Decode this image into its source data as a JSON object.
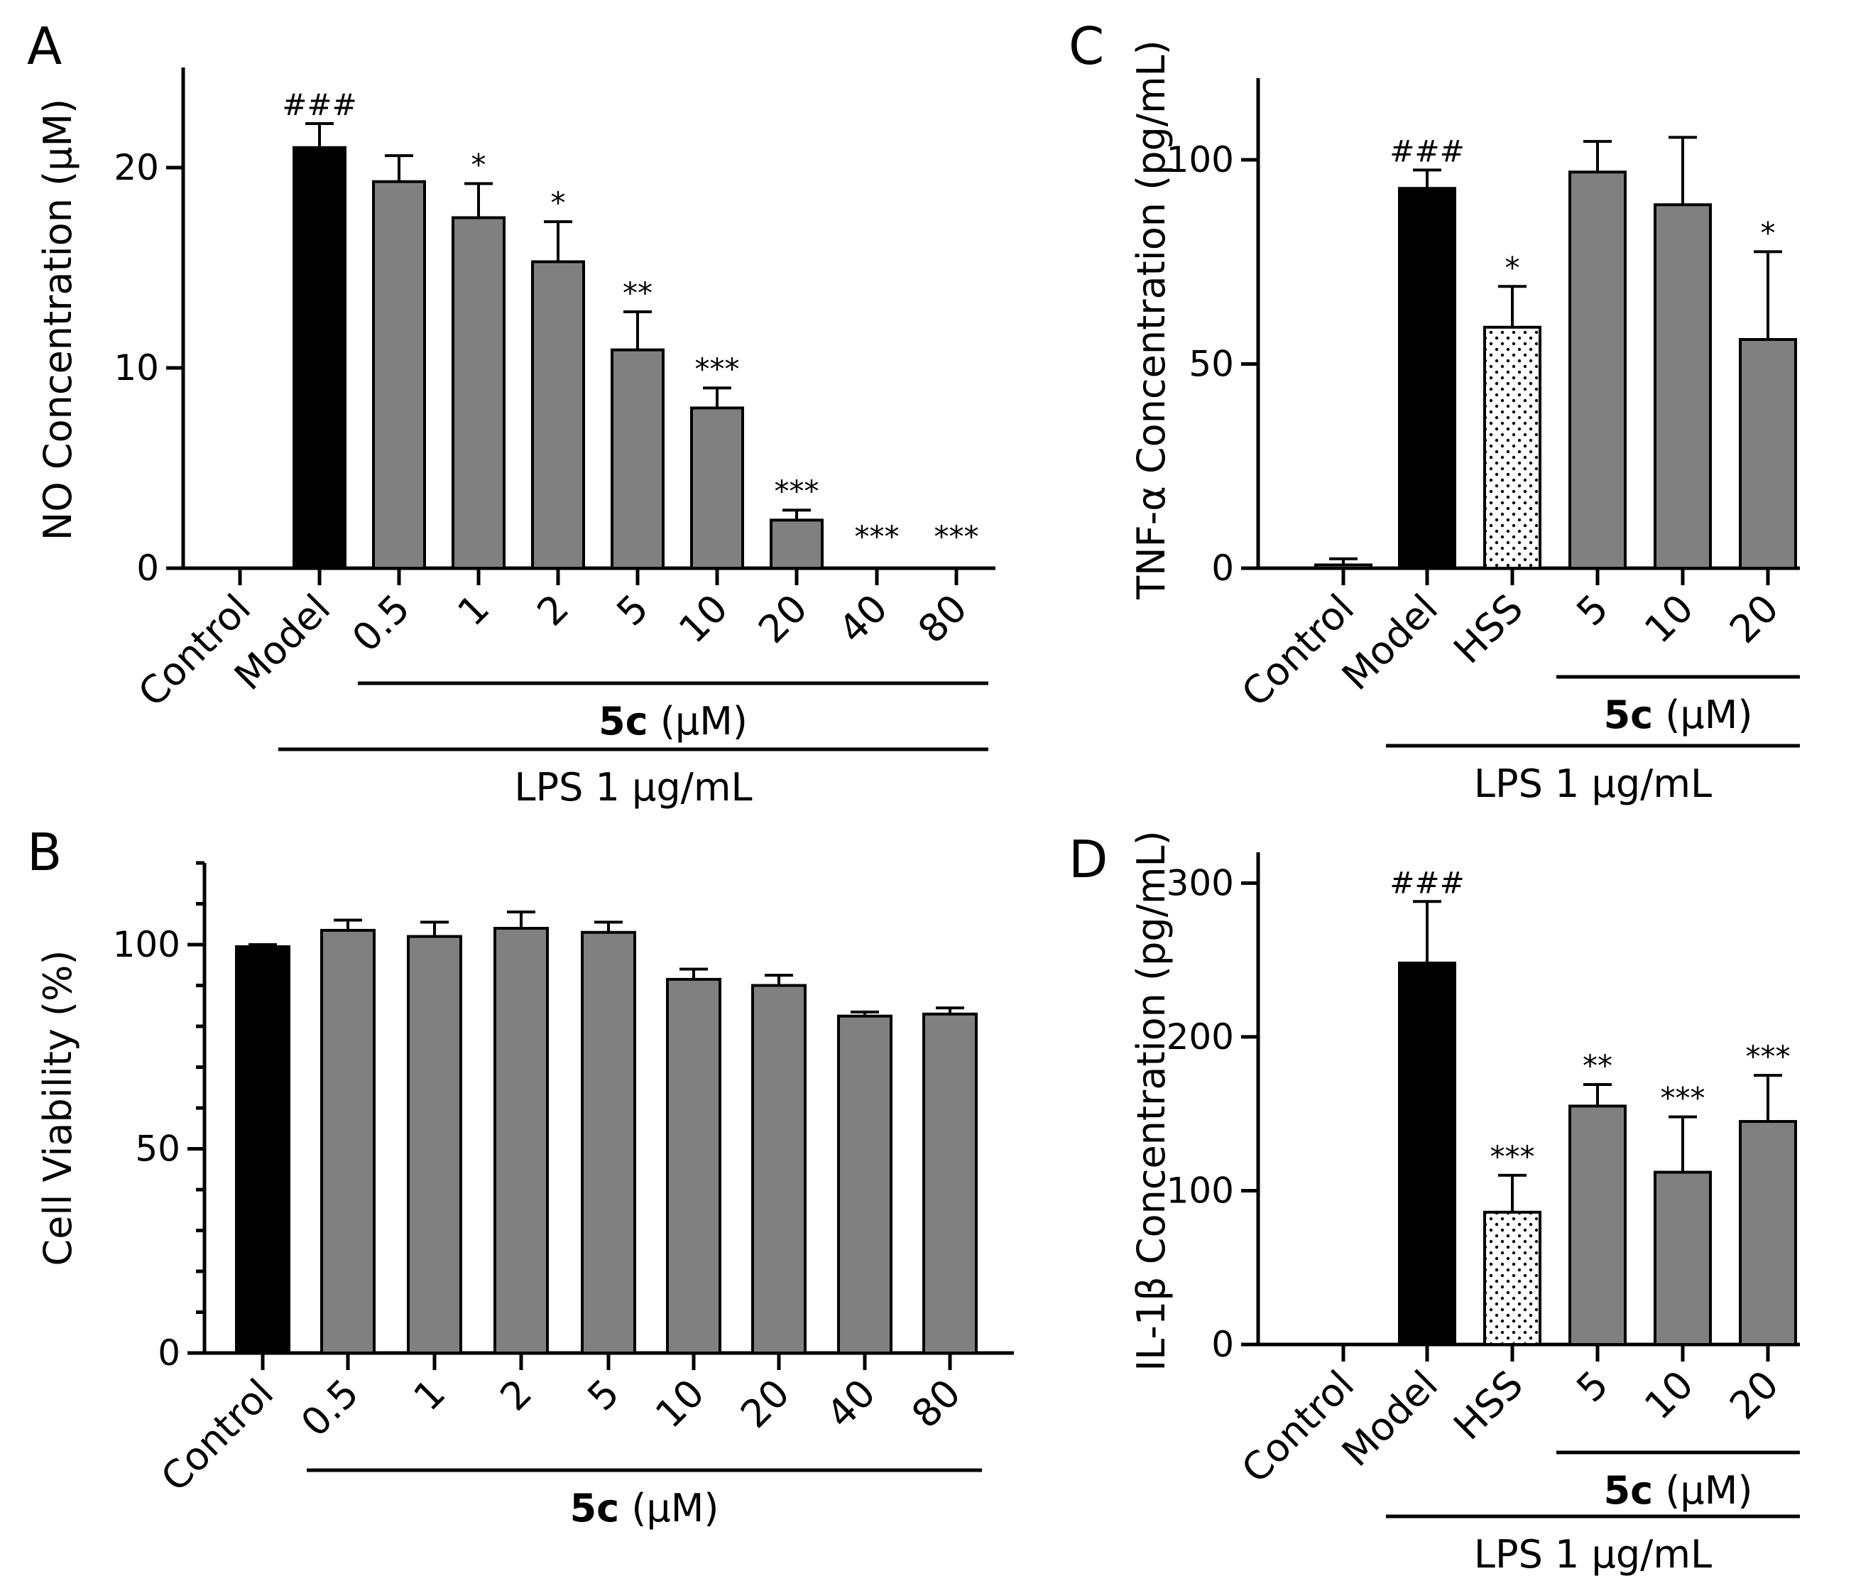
{
  "colors": {
    "model": "#000000",
    "treatment": "#808080",
    "hss_fill": "#ffffff",
    "axis": "#000000"
  },
  "chart_data": [
    {
      "panel": "A",
      "type": "bar",
      "ylabel": "NO  Concentration (μM)",
      "ylim": [
        0,
        25
      ],
      "yticks": [
        0,
        10,
        20
      ],
      "categories": [
        "Control",
        "Model",
        "0.5",
        "1",
        "2",
        "5",
        "10",
        "20",
        "40",
        "80"
      ],
      "values": [
        0,
        21.0,
        19.3,
        17.5,
        15.3,
        10.9,
        8.0,
        2.4,
        0,
        0
      ],
      "errors": [
        0,
        1.2,
        1.3,
        1.7,
        2.0,
        1.9,
        1.0,
        0.5,
        0,
        0
      ],
      "fills": [
        "treatment",
        "model",
        "treatment",
        "treatment",
        "treatment",
        "treatment",
        "treatment",
        "treatment",
        "treatment",
        "treatment"
      ],
      "significance": [
        "",
        "###",
        "",
        "*",
        "*",
        "**",
        "***",
        "***",
        "***",
        "***"
      ],
      "groups": [
        {
          "label_bold": "5c",
          "label_rest": " (μM)",
          "from": 2,
          "to": 9
        },
        {
          "label_bold": "",
          "label_rest": "LPS 1 μg/mL",
          "from": 1,
          "to": 9
        }
      ]
    },
    {
      "panel": "B",
      "type": "bar",
      "ylabel": "Cell Viability (%)",
      "ylim": [
        0,
        120
      ],
      "yticks": [
        0,
        50,
        100
      ],
      "categories": [
        "Control",
        "0.5",
        "1",
        "2",
        "5",
        "10",
        "20",
        "40",
        "80"
      ],
      "values": [
        99.5,
        103.5,
        102,
        104,
        103,
        91.5,
        90,
        82.5,
        83
      ],
      "errors": [
        0.5,
        2.5,
        3.5,
        4,
        2.5,
        2.5,
        2.5,
        1,
        1.5
      ],
      "fills": [
        "model",
        "treatment",
        "treatment",
        "treatment",
        "treatment",
        "treatment",
        "treatment",
        "treatment",
        "treatment"
      ],
      "significance": [
        "",
        "",
        "",
        "",
        "",
        "",
        "",
        "",
        ""
      ],
      "groups": [
        {
          "label_bold": "5c",
          "label_rest": " (μM)",
          "from": 1,
          "to": 8
        }
      ]
    },
    {
      "panel": "C",
      "type": "bar",
      "ylabel": "TNF-α Concentration (pg/mL)",
      "ylim": [
        0,
        120
      ],
      "yticks": [
        0,
        50,
        100
      ],
      "categories": [
        "Control",
        "Model",
        "HSS",
        "5",
        "10",
        "20"
      ],
      "values": [
        0.8,
        93,
        59,
        97,
        89,
        56
      ],
      "errors": [
        1.5,
        4.5,
        10,
        7.5,
        16.5,
        21.5
      ],
      "fills": [
        "treatment",
        "model",
        "hss",
        "treatment",
        "treatment",
        "treatment"
      ],
      "significance": [
        "",
        "###",
        "*",
        "",
        "",
        "*"
      ],
      "groups": [
        {
          "label_bold": "5c",
          "label_rest": " (μM)",
          "from": 3,
          "to": 5
        },
        {
          "label_bold": "",
          "label_rest": "LPS  1 μg/mL",
          "from": 1,
          "to": 5
        }
      ]
    },
    {
      "panel": "D",
      "type": "bar",
      "ylabel": "IL-1β Concentration (pg/mL)",
      "ylim": [
        0,
        320
      ],
      "yticks": [
        0,
        100,
        200,
        300
      ],
      "categories": [
        "Control",
        "Model",
        "HSS",
        "5",
        "10",
        "20"
      ],
      "values": [
        0,
        248,
        86,
        155,
        112,
        145
      ],
      "errors": [
        0,
        40,
        24,
        14,
        36,
        30
      ],
      "fills": [
        "treatment",
        "model",
        "hss",
        "treatment",
        "treatment",
        "treatment"
      ],
      "significance": [
        "",
        "###",
        "***",
        "**",
        "***",
        "***"
      ],
      "groups": [
        {
          "label_bold": "5c",
          "label_rest": " (μM)",
          "from": 3,
          "to": 5
        },
        {
          "label_bold": "",
          "label_rest": "LPS  1 μg/mL",
          "from": 1,
          "to": 5
        }
      ]
    }
  ]
}
